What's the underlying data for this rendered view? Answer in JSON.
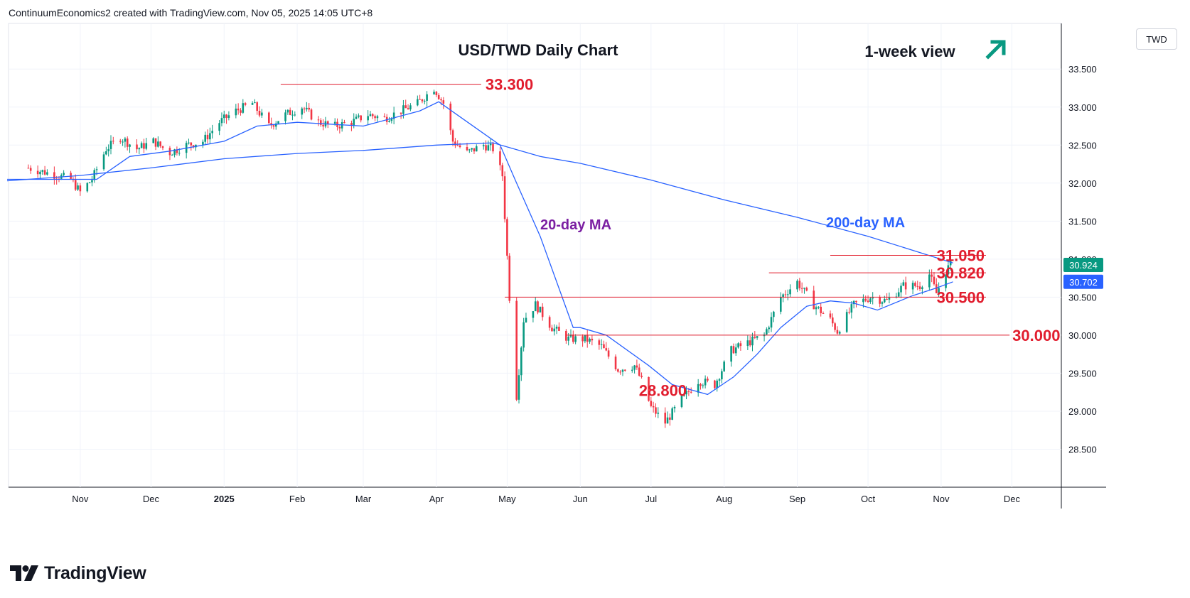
{
  "header": {
    "credit": "ContinuumEconomics2 created with TradingView.com, Nov 05, 2025 14:05 UTC+8"
  },
  "currency_badge": "TWD",
  "branding": {
    "name": "TradingView",
    "icon": "tradingview-logo-icon"
  },
  "colors": {
    "up": "#089981",
    "down": "#f23645",
    "ma": "#2962ff",
    "level": "#e11d2e",
    "ma20_label": "#7b1fa2",
    "ma200_label": "#2962ff",
    "arrow": "#089981"
  },
  "annotations": {
    "title": "USD/TWD Daily Chart",
    "view": "1-week view",
    "view_icon": "up-arrow-icon",
    "ma20_label": "20-day MA",
    "ma200_label": "200-day MA"
  },
  "chart_data": {
    "type": "candlestick",
    "title": "USD/TWD Daily Chart",
    "ylim": [
      28.05,
      34.1
    ],
    "y_ticks": [
      "28.500",
      "29.000",
      "29.500",
      "30.000",
      "30.500",
      "31.000",
      "31.500",
      "32.000",
      "32.500",
      "33.000",
      "33.500"
    ],
    "x_labels": [
      "Nov",
      "Dec",
      "2025",
      "Feb",
      "Mar",
      "Apr",
      "May",
      "Jun",
      "Jul",
      "Aug",
      "Sep",
      "Oct",
      "Nov",
      "Dec"
    ],
    "levels": [
      {
        "value": 33.3,
        "label": "33.300",
        "from": "2025-01-25",
        "to": "2025-04-20"
      },
      {
        "value": 31.05,
        "label": "31.050",
        "from": "2025-09-15",
        "to": "2025-11-20"
      },
      {
        "value": 30.82,
        "label": "30.820",
        "from": "2025-08-20",
        "to": "2025-11-20"
      },
      {
        "value": 30.5,
        "label": "30.500",
        "from": "2025-04-30",
        "to": "2025-11-20"
      },
      {
        "value": 30.0,
        "label": "30.000",
        "from": "2025-05-26",
        "to": "2025-11-30"
      },
      {
        "value": 28.8,
        "label": "28.800",
        "at": "2025-07-06"
      }
    ],
    "price_tags": [
      {
        "value": 30.924,
        "label": "30.924",
        "color": "#089981"
      },
      {
        "value": 30.702,
        "label": "30.702",
        "color": "#2962ff"
      }
    ],
    "series": [
      {
        "name": "USD/TWD",
        "kind": "ohlc",
        "points": [
          [
            "2024-10-10",
            32.2
          ],
          [
            "2024-10-20",
            32.12
          ],
          [
            "2024-10-28",
            32.05
          ],
          [
            "2024-11-01",
            31.88
          ],
          [
            "2024-11-06",
            32.05
          ],
          [
            "2024-11-12",
            32.45
          ],
          [
            "2024-11-18",
            32.6
          ],
          [
            "2024-11-25",
            32.45
          ],
          [
            "2024-12-02",
            32.55
          ],
          [
            "2024-12-09",
            32.4
          ],
          [
            "2024-12-16",
            32.5
          ],
          [
            "2024-12-23",
            32.55
          ],
          [
            "2024-12-30",
            32.8
          ],
          [
            "2025-01-06",
            32.95
          ],
          [
            "2025-01-13",
            33.05
          ],
          [
            "2025-01-20",
            32.75
          ],
          [
            "2025-01-27",
            32.9
          ],
          [
            "2025-02-03",
            33.0
          ],
          [
            "2025-02-10",
            32.8
          ],
          [
            "2025-02-17",
            32.75
          ],
          [
            "2025-02-24",
            32.8
          ],
          [
            "2025-03-03",
            32.9
          ],
          [
            "2025-03-10",
            32.85
          ],
          [
            "2025-03-17",
            32.95
          ],
          [
            "2025-03-24",
            33.05
          ],
          [
            "2025-03-31",
            33.25
          ],
          [
            "2025-04-04",
            33.05
          ],
          [
            "2025-04-08",
            32.55
          ],
          [
            "2025-04-14",
            32.4
          ],
          [
            "2025-04-21",
            32.5
          ],
          [
            "2025-04-25",
            32.45
          ],
          [
            "2025-04-29",
            32.1
          ],
          [
            "2025-05-02",
            30.5
          ],
          [
            "2025-05-05",
            29.2
          ],
          [
            "2025-05-08",
            30.2
          ],
          [
            "2025-05-13",
            30.4
          ],
          [
            "2025-05-20",
            30.1
          ],
          [
            "2025-05-27",
            29.95
          ],
          [
            "2025-06-03",
            29.95
          ],
          [
            "2025-06-10",
            29.85
          ],
          [
            "2025-06-17",
            29.55
          ],
          [
            "2025-06-24",
            29.6
          ],
          [
            "2025-06-27",
            29.4
          ],
          [
            "2025-07-01",
            29.05
          ],
          [
            "2025-07-07",
            28.85
          ],
          [
            "2025-07-14",
            29.15
          ],
          [
            "2025-07-21",
            29.4
          ],
          [
            "2025-07-28",
            29.35
          ],
          [
            "2025-08-04",
            29.8
          ],
          [
            "2025-08-11",
            29.9
          ],
          [
            "2025-08-18",
            30.0
          ],
          [
            "2025-08-25",
            30.5
          ],
          [
            "2025-09-01",
            30.7
          ],
          [
            "2025-09-08",
            30.4
          ],
          [
            "2025-09-15",
            30.2
          ],
          [
            "2025-09-18",
            30.05
          ],
          [
            "2025-09-25",
            30.4
          ],
          [
            "2025-10-02",
            30.5
          ],
          [
            "2025-10-09",
            30.45
          ],
          [
            "2025-10-16",
            30.65
          ],
          [
            "2025-10-23",
            30.65
          ],
          [
            "2025-10-27",
            30.8
          ],
          [
            "2025-10-30",
            30.55
          ],
          [
            "2025-11-03",
            30.85
          ],
          [
            "2025-11-05",
            30.924
          ]
        ]
      },
      {
        "name": "20-day MA",
        "kind": "line",
        "points": [
          [
            "2024-10-01",
            32.05
          ],
          [
            "2024-11-01",
            32.05
          ],
          [
            "2024-11-08",
            32.05
          ],
          [
            "2024-11-22",
            32.35
          ],
          [
            "2024-12-09",
            32.42
          ],
          [
            "2025-01-01",
            32.55
          ],
          [
            "2025-01-15",
            32.75
          ],
          [
            "2025-02-01",
            32.8
          ],
          [
            "2025-03-01",
            32.75
          ],
          [
            "2025-03-25",
            32.95
          ],
          [
            "2025-04-02",
            33.07
          ],
          [
            "2025-04-12",
            32.85
          ],
          [
            "2025-04-28",
            32.5
          ],
          [
            "2025-05-05",
            32.0
          ],
          [
            "2025-05-15",
            31.3
          ],
          [
            "2025-05-29",
            30.1
          ],
          [
            "2025-06-01",
            30.1
          ],
          [
            "2025-06-12",
            30.0
          ],
          [
            "2025-06-30",
            29.6
          ],
          [
            "2025-07-10",
            29.35
          ],
          [
            "2025-07-25",
            29.22
          ],
          [
            "2025-08-05",
            29.45
          ],
          [
            "2025-08-15",
            29.75
          ],
          [
            "2025-08-25",
            30.1
          ],
          [
            "2025-09-05",
            30.38
          ],
          [
            "2025-09-15",
            30.45
          ],
          [
            "2025-09-25",
            30.42
          ],
          [
            "2025-10-05",
            30.33
          ],
          [
            "2025-10-20",
            30.52
          ],
          [
            "2025-10-30",
            30.62
          ],
          [
            "2025-11-06",
            30.702
          ]
        ]
      },
      {
        "name": "200-day MA",
        "kind": "line",
        "points": [
          [
            "2024-10-01",
            32.03
          ],
          [
            "2024-11-01",
            32.1
          ],
          [
            "2024-12-01",
            32.2
          ],
          [
            "2025-01-01",
            32.32
          ],
          [
            "2025-02-01",
            32.39
          ],
          [
            "2025-03-01",
            32.43
          ],
          [
            "2025-04-01",
            32.5
          ],
          [
            "2025-04-25",
            32.53
          ],
          [
            "2025-05-15",
            32.35
          ],
          [
            "2025-06-01",
            32.26
          ],
          [
            "2025-07-01",
            32.04
          ],
          [
            "2025-08-01",
            31.78
          ],
          [
            "2025-09-01",
            31.55
          ],
          [
            "2025-10-01",
            31.3
          ],
          [
            "2025-11-06",
            30.95
          ]
        ]
      }
    ]
  }
}
